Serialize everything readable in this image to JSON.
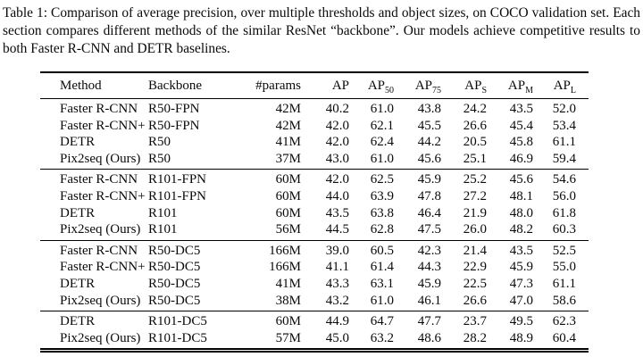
{
  "caption": {
    "text": "Table 1: Comparison of average precision, over multiple thresholds and object sizes, on COCO validation set. Each section compares different methods of the similar ResNet “backbone”. Our models achieve competitive results to both Faster R-CNN and DETR baselines."
  },
  "table": {
    "columns": [
      {
        "label": "Method"
      },
      {
        "label": "Backbone"
      },
      {
        "label": "#params"
      },
      {
        "label": "AP"
      },
      {
        "label": "AP",
        "sub": "50"
      },
      {
        "label": "AP",
        "sub": "75"
      },
      {
        "label": "AP",
        "sub": "S"
      },
      {
        "label": "AP",
        "sub": "M"
      },
      {
        "label": "AP",
        "sub": "L"
      }
    ],
    "sections": [
      {
        "rows": [
          {
            "method": "Faster R-CNN",
            "backbone": "R50-FPN",
            "params": "42M",
            "ap": "40.2",
            "bold_ap": false,
            "ap50": "61.0",
            "ap75": "43.8",
            "aps": "24.2",
            "apm": "43.5",
            "apl": "52.0"
          },
          {
            "method": "Faster R-CNN+",
            "backbone": "R50-FPN",
            "params": "42M",
            "ap": "42.0",
            "bold_ap": false,
            "ap50": "62.1",
            "ap75": "45.5",
            "aps": "26.6",
            "apm": "45.4",
            "apl": "53.4"
          },
          {
            "method": "DETR",
            "backbone": "R50",
            "params": "41M",
            "ap": "42.0",
            "bold_ap": false,
            "ap50": "62.4",
            "ap75": "44.2",
            "aps": "20.5",
            "apm": "45.8",
            "apl": "61.1"
          },
          {
            "method": "Pix2seq (Ours)",
            "backbone": "R50",
            "params": "37M",
            "ap": "43.0",
            "bold_ap": true,
            "ap50": "61.0",
            "ap75": "45.6",
            "aps": "25.1",
            "apm": "46.9",
            "apl": "59.4"
          }
        ]
      },
      {
        "rows": [
          {
            "method": "Faster R-CNN",
            "backbone": "R101-FPN",
            "params": "60M",
            "ap": "42.0",
            "bold_ap": false,
            "ap50": "62.5",
            "ap75": "45.9",
            "aps": "25.2",
            "apm": "45.6",
            "apl": "54.6"
          },
          {
            "method": "Faster R-CNN+",
            "backbone": "R101-FPN",
            "params": "60M",
            "ap": "44.0",
            "bold_ap": false,
            "ap50": "63.9",
            "ap75": "47.8",
            "aps": "27.2",
            "apm": "48.1",
            "apl": "56.0"
          },
          {
            "method": "DETR",
            "backbone": "R101",
            "params": "60M",
            "ap": "43.5",
            "bold_ap": false,
            "ap50": "63.8",
            "ap75": "46.4",
            "aps": "21.9",
            "apm": "48.0",
            "apl": "61.8"
          },
          {
            "method": "Pix2seq (Ours)",
            "backbone": "R101",
            "params": "56M",
            "ap": "44.5",
            "bold_ap": true,
            "ap50": "62.8",
            "ap75": "47.5",
            "aps": "26.0",
            "apm": "48.2",
            "apl": "60.3"
          }
        ]
      },
      {
        "rows": [
          {
            "method": "Faster R-CNN",
            "backbone": "R50-DC5",
            "params": "166M",
            "ap": "39.0",
            "bold_ap": false,
            "ap50": "60.5",
            "ap75": "42.3",
            "aps": "21.4",
            "apm": "43.5",
            "apl": "52.5"
          },
          {
            "method": "Faster R-CNN+",
            "backbone": "R50-DC5",
            "params": "166M",
            "ap": "41.1",
            "bold_ap": false,
            "ap50": "61.4",
            "ap75": "44.3",
            "aps": "22.9",
            "apm": "45.9",
            "apl": "55.0"
          },
          {
            "method": "DETR",
            "backbone": "R50-DC5",
            "params": "41M",
            "ap": "43.3",
            "bold_ap": true,
            "ap50": "63.1",
            "ap75": "45.9",
            "aps": "22.5",
            "apm": "47.3",
            "apl": "61.1"
          },
          {
            "method": "Pix2seq (Ours)",
            "backbone": "R50-DC5",
            "params": "38M",
            "ap": "43.2",
            "bold_ap": true,
            "ap50": "61.0",
            "ap75": "46.1",
            "aps": "26.6",
            "apm": "47.0",
            "apl": "58.6"
          }
        ]
      },
      {
        "rows": [
          {
            "method": "DETR",
            "backbone": "R101-DC5",
            "params": "60M",
            "ap": "44.9",
            "bold_ap": true,
            "ap50": "64.7",
            "ap75": "47.7",
            "aps": "23.7",
            "apm": "49.5",
            "apl": "62.3"
          },
          {
            "method": "Pix2seq (Ours)",
            "backbone": "R101-DC5",
            "params": "57M",
            "ap": "45.0",
            "bold_ap": true,
            "ap50": "63.2",
            "ap75": "48.6",
            "aps": "28.2",
            "apm": "48.9",
            "apl": "60.4"
          }
        ]
      }
    ]
  }
}
